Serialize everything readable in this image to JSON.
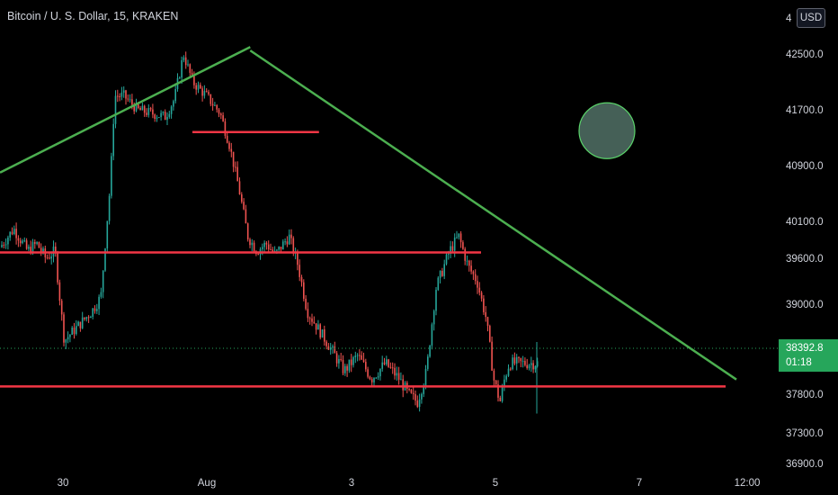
{
  "header": {
    "title": "Bitcoin / U. S. Dollar, 15, KRAKEN"
  },
  "scale": {
    "currency_label": "USD",
    "top_cut_label": "4"
  },
  "last_price": {
    "value": "38392.8",
    "countdown": "01:18"
  },
  "colors": {
    "up": "#26a69a",
    "down": "#ef5350",
    "trend": "#4caf50",
    "level": "#f23645",
    "circle_fill": "#4d6a60",
    "circle_stroke": "#5ad36a",
    "tag": "#26a65b"
  },
  "chart_data": {
    "type": "candlestick",
    "title": "Bitcoin / U. S. Dollar, 15, KRAKEN",
    "y_ticks": [
      "42500.0",
      "41700.0",
      "40900.0",
      "40100.0",
      "39600.0",
      "39000.0",
      "37800.0",
      "37300.0",
      "36900.0"
    ],
    "x_ticks": [
      "30",
      "Aug",
      "3",
      "5",
      "7",
      "12:00"
    ],
    "x_range_days": [
      29.6,
      8.9
    ],
    "y_range": [
      36900,
      43200
    ],
    "last_price": 38392.8,
    "price_path": [
      [
        29.6,
        39750
      ],
      [
        29.75,
        40000
      ],
      [
        29.9,
        39700
      ],
      [
        30.0,
        39800
      ],
      [
        30.1,
        39600
      ],
      [
        30.2,
        39700
      ],
      [
        30.3,
        38500
      ],
      [
        30.45,
        38700
      ],
      [
        30.6,
        38900
      ],
      [
        30.7,
        39100
      ],
      [
        30.8,
        40600
      ],
      [
        30.85,
        41900
      ],
      [
        30.95,
        41900
      ],
      [
        31.1,
        41700
      ],
      [
        31.25,
        41650
      ],
      [
        31.4,
        41600
      ],
      [
        31.5,
        41850
      ],
      [
        31.6,
        42500
      ],
      [
        31.7,
        42100
      ],
      [
        31.85,
        41900
      ],
      [
        32.0,
        41650
      ],
      [
        32.1,
        41200
      ],
      [
        32.2,
        40600
      ],
      [
        32.3,
        39900
      ],
      [
        32.4,
        39700
      ],
      [
        32.5,
        39800
      ],
      [
        32.6,
        39650
      ],
      [
        32.75,
        39900
      ],
      [
        32.85,
        39500
      ],
      [
        32.95,
        38900
      ],
      [
        33.05,
        38700
      ],
      [
        33.2,
        38400
      ],
      [
        33.35,
        38100
      ],
      [
        33.5,
        38300
      ],
      [
        33.65,
        38000
      ],
      [
        33.8,
        38200
      ],
      [
        33.95,
        38000
      ],
      [
        34.05,
        37800
      ],
      [
        34.15,
        37700
      ],
      [
        34.25,
        38100
      ],
      [
        34.35,
        39200
      ],
      [
        34.5,
        39700
      ],
      [
        34.6,
        39900
      ],
      [
        34.7,
        39500
      ],
      [
        34.8,
        39300
      ],
      [
        34.9,
        38800
      ],
      [
        34.98,
        38000
      ],
      [
        35.05,
        37700
      ],
      [
        35.1,
        38000
      ],
      [
        35.15,
        38200
      ]
    ],
    "levels": [
      {
        "from": 30.9,
        "to": 32.55,
        "price": 41380
      },
      {
        "from": 29.6,
        "to": 34.8,
        "price": 39680
      },
      {
        "from": 29.6,
        "to": 37.4,
        "price": 37900
      }
    ],
    "trendlines": [
      {
        "from": [
          29.6,
          40800
        ],
        "to": [
          31.6,
          42600
        ]
      },
      {
        "from": [
          31.6,
          42550
        ],
        "to": [
          37.45,
          37990
        ]
      }
    ],
    "annotation": {
      "shape": "circle",
      "center": [
        36.55,
        41400
      ],
      "radius_price": 400
    }
  }
}
